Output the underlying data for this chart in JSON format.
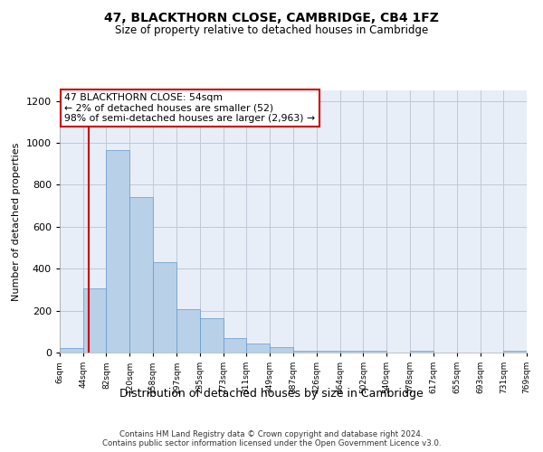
{
  "title": "47, BLACKTHORN CLOSE, CAMBRIDGE, CB4 1FZ",
  "subtitle": "Size of property relative to detached houses in Cambridge",
  "xlabel": "Distribution of detached houses by size in Cambridge",
  "ylabel": "Number of detached properties",
  "bar_color": "#b8d0e8",
  "bar_edge_color": "#6699cc",
  "background_color": "#ffffff",
  "plot_bg_color": "#e8eef8",
  "grid_color": "#c0c8d8",
  "annotation_box_color": "#cc0000",
  "property_line_color": "#cc0000",
  "property_value": 54,
  "bin_edges": [
    6,
    44,
    82,
    120,
    158,
    197,
    235,
    273,
    311,
    349,
    387,
    426,
    464,
    502,
    540,
    578,
    617,
    655,
    693,
    731,
    769
  ],
  "bin_heights": [
    20,
    305,
    965,
    740,
    430,
    205,
    165,
    68,
    42,
    28,
    10,
    10,
    10,
    10,
    0,
    10,
    0,
    0,
    0,
    10
  ],
  "tick_labels": [
    "6sqm",
    "44sqm",
    "82sqm",
    "120sqm",
    "158sqm",
    "197sqm",
    "235sqm",
    "273sqm",
    "311sqm",
    "349sqm",
    "387sqm",
    "426sqm",
    "464sqm",
    "502sqm",
    "540sqm",
    "578sqm",
    "617sqm",
    "655sqm",
    "693sqm",
    "731sqm",
    "769sqm"
  ],
  "ylim": [
    0,
    1250
  ],
  "yticks": [
    0,
    200,
    400,
    600,
    800,
    1000,
    1200
  ],
  "annotation_text": "47 BLACKTHORN CLOSE: 54sqm\n← 2% of detached houses are smaller (52)\n98% of semi-detached houses are larger (2,963) →",
  "footer_line1": "Contains HM Land Registry data © Crown copyright and database right 2024.",
  "footer_line2": "Contains public sector information licensed under the Open Government Licence v3.0."
}
